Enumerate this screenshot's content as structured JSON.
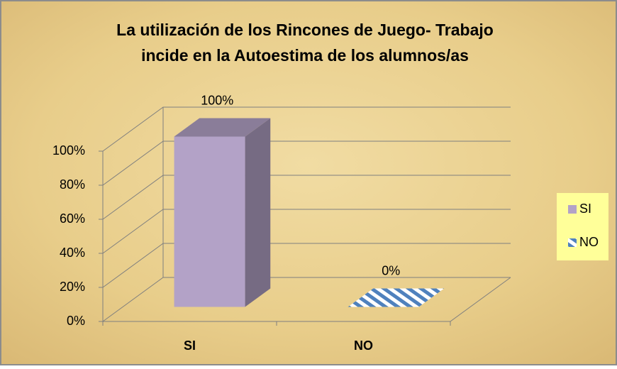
{
  "chart_data": {
    "type": "bar3d",
    "title": [
      "La utilización de los Rincones de Juego- Trabajo",
      "incide en la Autoestima de los alumnos/as"
    ],
    "categories": [
      "SI",
      "NO"
    ],
    "values": [
      100,
      0
    ],
    "value_labels": [
      "100%",
      "0%"
    ],
    "colors": [
      "#b3a2c7",
      "#4f81bd"
    ],
    "fills": [
      "solid",
      "diagonal-stripes"
    ],
    "ylim": [
      0,
      100
    ],
    "yticks": [
      {
        "value": 0,
        "label": "0%"
      },
      {
        "value": 20,
        "label": "20%"
      },
      {
        "value": 40,
        "label": "40%"
      },
      {
        "value": 60,
        "label": "60%"
      },
      {
        "value": 80,
        "label": "80%"
      },
      {
        "value": 100,
        "label": "100%"
      }
    ],
    "grid": true,
    "legend": "right"
  }
}
